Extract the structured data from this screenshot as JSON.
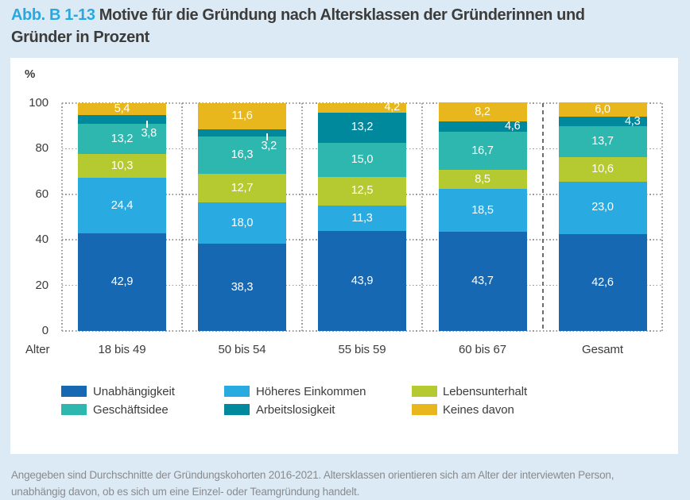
{
  "header": {
    "figure_label": "Abb. B 1-13",
    "title_line1": "Motive für die Gründung nach Altersklassen der Gründerinnen und",
    "title_line2": "Gründer in Prozent"
  },
  "footnote_lines": [
    "Angegeben sind Durchschnitte der Gründungskohorten 2016-2021. Altersklassen orientieren sich am Alter der interviewten Person,",
    "unabhängig davon, ob es sich um eine Einzel- oder Teamgründung handelt."
  ],
  "colors": {
    "accent_blue": "#29a8e0",
    "page_bg": "#dceaf5",
    "card_bg": "#ffffff",
    "text_dark": "#3c3c3b",
    "text_gray": "#898b8e",
    "value_label": "#ffffff"
  },
  "chart_data": {
    "type": "bar",
    "stacked": true,
    "title": "Motive für die Gründung nach Altersklassen der Gründerinnen und Gründer in Prozent",
    "unit_label": "%",
    "x_axis_label": "Alter",
    "categories": [
      "18 bis 49",
      "50 bis 54",
      "55 bis 59",
      "60 bis 67",
      "Gesamt"
    ],
    "ylim": [
      0,
      100
    ],
    "yticks": [
      0,
      20,
      40,
      60,
      80,
      100
    ],
    "grid": "dotted",
    "legend_position": "bottom",
    "dashed_separator_before_category": "Gesamt",
    "series": [
      {
        "name": "Unabhängigkeit",
        "color": "#1568b1",
        "values": [
          42.9,
          38.3,
          43.9,
          43.7,
          42.6
        ],
        "labels": [
          "42,9",
          "38,3",
          "43,9",
          "43,7",
          "42,6"
        ]
      },
      {
        "name": "Höheres Einkommen",
        "color": "#29abe2",
        "values": [
          24.4,
          18.0,
          11.3,
          18.5,
          23.0
        ],
        "labels": [
          "24,4",
          "18,0",
          "11,3",
          "18,5",
          "23,0"
        ]
      },
      {
        "name": "Lebensunterhalt",
        "color": "#b4ca30",
        "values": [
          10.3,
          12.7,
          12.5,
          8.5,
          10.6
        ],
        "labels": [
          "10,3",
          "12,7",
          "12,5",
          "8,5",
          "10,6"
        ]
      },
      {
        "name": "Geschäftsidee",
        "color": "#2db7af",
        "values": [
          13.2,
          16.3,
          15.0,
          16.7,
          13.7
        ],
        "labels": [
          "13,2",
          "16,3",
          "15,0",
          "16,7",
          "13,7"
        ]
      },
      {
        "name": "Arbeitslosigkeit",
        "color": "#00889c",
        "values": [
          3.8,
          3.2,
          13.2,
          4.6,
          4.3
        ],
        "labels": [
          "3,8",
          "3,2",
          "13,2",
          "4,6",
          "4,3"
        ]
      },
      {
        "name": "Keines davon",
        "color": "#e8b71e",
        "values": [
          5.4,
          11.6,
          4.2,
          8.2,
          6.0
        ],
        "labels": [
          "5,4",
          "11,6",
          "4,2",
          "8,2",
          "6,0"
        ]
      }
    ],
    "legend": {
      "rows": [
        [
          "Unabhängigkeit",
          "Höheres Einkommen",
          "Lebensunterhalt"
        ],
        [
          "Geschäftsidee",
          "Arbeitslosigkeit",
          "Keines davon"
        ]
      ]
    }
  }
}
